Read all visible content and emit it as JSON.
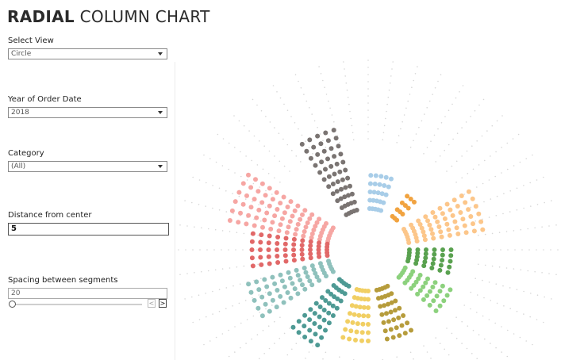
{
  "title_bold": "RADIAL",
  "title_rest": "COLUMN CHART",
  "controls": {
    "view": {
      "label": "Select View",
      "value": "Circle"
    },
    "year": {
      "label": "Year of Order Date",
      "value": "2018"
    },
    "category": {
      "label": "Category",
      "value": "(All)"
    },
    "distance": {
      "label": "Distance from center",
      "value": "5"
    },
    "spacing": {
      "label": "Spacing between segments",
      "value": "20"
    }
  },
  "chart_data": {
    "type": "radial-dot-column",
    "series": [
      {
        "angle": 292,
        "rows": 13,
        "cols": 6,
        "color": "#f6a6a3"
      },
      {
        "angle": 336,
        "rows": 11,
        "cols": 5,
        "color": "#7a7472"
      },
      {
        "angle": 10,
        "rows": 5,
        "cols": 5,
        "color": "#a8cde8"
      },
      {
        "angle": 40,
        "rows": 4,
        "cols": 3,
        "color": "#f1a340"
      },
      {
        "angle": 70,
        "rows": 10,
        "cols": 6,
        "color": "#fcc68a"
      },
      {
        "angle": 98,
        "rows": 6,
        "cols": 5,
        "color": "#59a14f"
      },
      {
        "angle": 124,
        "rows": 7,
        "cols": 5,
        "color": "#8cd17d"
      },
      {
        "angle": 160,
        "rows": 7,
        "cols": 5,
        "color": "#b69c3c"
      },
      {
        "angle": 188,
        "rows": 7,
        "cols": 5,
        "color": "#f1cf63"
      },
      {
        "angle": 216,
        "rows": 9,
        "cols": 5,
        "color": "#4e9a94"
      },
      {
        "angle": 246,
        "rows": 11,
        "cols": 5,
        "color": "#8fc1bc"
      },
      {
        "angle": 270,
        "rows": 10,
        "cols": 5,
        "color": "#e16868"
      }
    ]
  }
}
